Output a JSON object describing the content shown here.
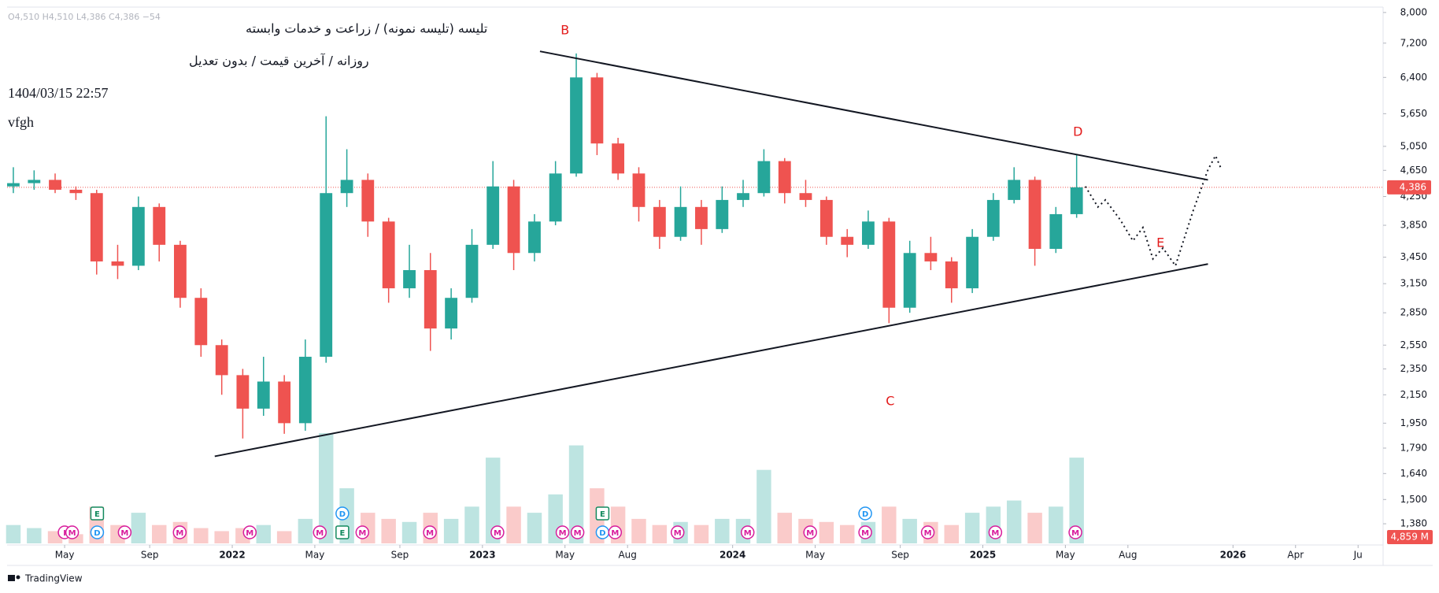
{
  "chart_data": {
    "type": "candlestick",
    "title": "تلیسه (تلیسه نمونه) / زراعت و خدمات وابسته",
    "subtitle": "روزانه / آخرین قیمت / بدون تعدیل",
    "date_text": "1404/03/15 22:57",
    "note": "vfgh",
    "ohlc_header": "O4,510 H4,510 L4,386 C4,386 −54",
    "brand": "TradingView",
    "log_scale": true,
    "ylim": [
      1290,
      8150
    ],
    "yticks": [
      {
        "value": 8000,
        "label": "8,000"
      },
      {
        "value": 7200,
        "label": "7,200"
      },
      {
        "value": 6400,
        "label": "6,400"
      },
      {
        "value": 5650,
        "label": "5,650"
      },
      {
        "value": 5050,
        "label": "5,050"
      },
      {
        "value": 4650,
        "label": "4,650"
      },
      {
        "value": 4250,
        "label": "4,250"
      },
      {
        "value": 3850,
        "label": "3,850"
      },
      {
        "value": 3450,
        "label": "3,450"
      },
      {
        "value": 3150,
        "label": "3,150"
      },
      {
        "value": 2850,
        "label": "2,850"
      },
      {
        "value": 2550,
        "label": "2,550"
      },
      {
        "value": 2350,
        "label": "2,350"
      },
      {
        "value": 2150,
        "label": "2,150"
      },
      {
        "value": 1950,
        "label": "1,950"
      },
      {
        "value": 1790,
        "label": "1,790"
      },
      {
        "value": 1640,
        "label": "1,640"
      },
      {
        "value": 1500,
        "label": "1,500"
      },
      {
        "value": 1380,
        "label": "1,380"
      }
    ],
    "xlim": [
      2021.1,
      2026.6
    ],
    "xticks": [
      {
        "value": 2021.33,
        "label": "May"
      },
      {
        "value": 2021.67,
        "label": "Sep"
      },
      {
        "value": 2022,
        "label": "2022",
        "bold": true
      },
      {
        "value": 2022.33,
        "label": "May"
      },
      {
        "value": 2022.67,
        "label": "Sep"
      },
      {
        "value": 2023,
        "label": "2023",
        "bold": true
      },
      {
        "value": 2023.33,
        "label": "May"
      },
      {
        "value": 2023.58,
        "label": "Aug"
      },
      {
        "value": 2024,
        "label": "2024",
        "bold": true
      },
      {
        "value": 2024.33,
        "label": "May"
      },
      {
        "value": 2024.67,
        "label": "Sep"
      },
      {
        "value": 2025,
        "label": "2025",
        "bold": true
      },
      {
        "value": 2025.33,
        "label": "May"
      },
      {
        "value": 2025.58,
        "label": "Aug"
      },
      {
        "value": 2026,
        "label": "2026",
        "bold": true
      },
      {
        "value": 2026.25,
        "label": "Apr"
      },
      {
        "value": 2026.5,
        "label": "Ju"
      }
    ],
    "up_color": "#26a69a",
    "down_color": "#ef5350",
    "x": [
      2021.125,
      2021.208,
      2021.292,
      2021.375,
      2021.458,
      2021.542,
      2021.625,
      2021.708,
      2021.792,
      2021.875,
      2021.958,
      2022.042,
      2022.125,
      2022.208,
      2022.292,
      2022.375,
      2022.458,
      2022.542,
      2022.625,
      2022.708,
      2022.792,
      2022.875,
      2022.958,
      2023.042,
      2023.125,
      2023.208,
      2023.292,
      2023.375,
      2023.458,
      2023.542,
      2023.625,
      2023.708,
      2023.792,
      2023.875,
      2023.958,
      2024.042,
      2024.125,
      2024.208,
      2024.292,
      2024.375,
      2024.458,
      2024.542,
      2024.625,
      2024.708,
      2024.792,
      2024.875,
      2024.958,
      2025.042,
      2025.125,
      2025.208,
      2025.292,
      2025.375
    ],
    "open": [
      4400,
      4450,
      4500,
      4350,
      4300,
      3400,
      3350,
      4100,
      3600,
      3000,
      2550,
      2300,
      2050,
      2250,
      1950,
      2450,
      4300,
      4500,
      3900,
      3100,
      3300,
      2700,
      3000,
      3600,
      4400,
      3500,
      3900,
      4600,
      6400,
      5100,
      4600,
      4100,
      3700,
      4100,
      3800,
      4200,
      4300,
      4800,
      4300,
      4200,
      3700,
      3600,
      3900,
      2900,
      3500,
      3400,
      3100,
      3700,
      4200,
      4500,
      3550,
      4000
    ],
    "high": [
      4700,
      4650,
      4600,
      4400,
      4350,
      3600,
      4250,
      4150,
      3650,
      3100,
      2600,
      2350,
      2450,
      2300,
      2600,
      5600,
      5000,
      4600,
      3950,
      3600,
      3500,
      3100,
      3800,
      4800,
      4500,
      4000,
      4800,
      6950,
      6500,
      5200,
      4700,
      4200,
      4400,
      4200,
      4400,
      4500,
      5000,
      4850,
      4500,
      4250,
      3800,
      4050,
      3950,
      3650,
      3700,
      3450,
      3800,
      4300,
      4700,
      4550,
      4100,
      4900
    ],
    "low": [
      4300,
      4350,
      4300,
      4200,
      3250,
      3200,
      3300,
      3400,
      2900,
      2450,
      2150,
      1850,
      2000,
      1880,
      1900,
      2400,
      4100,
      3700,
      2950,
      3000,
      2500,
      2600,
      2950,
      3550,
      3300,
      3400,
      3850,
      4550,
      4900,
      4500,
      3900,
      3550,
      3650,
      3600,
      3750,
      4100,
      4250,
      4150,
      4100,
      3600,
      3450,
      3550,
      2750,
      2850,
      3300,
      2950,
      3050,
      3650,
      4150,
      3350,
      3500,
      3950
    ],
    "close": [
      4450,
      4500,
      4350,
      4300,
      3400,
      3350,
      4100,
      3600,
      3000,
      2550,
      2300,
      2050,
      2250,
      1950,
      2450,
      4300,
      4500,
      3900,
      3100,
      3300,
      2700,
      3000,
      3600,
      4400,
      3500,
      3900,
      4600,
      6400,
      5100,
      4600,
      4100,
      3700,
      4100,
      3800,
      4200,
      4300,
      4800,
      4300,
      4200,
      3700,
      3600,
      3900,
      2900,
      3500,
      3400,
      3100,
      3700,
      4200,
      4500,
      3550,
      4000,
      4386
    ],
    "volume": [
      3000,
      2500,
      2000,
      1500,
      6000,
      3000,
      5000,
      3000,
      3500,
      2500,
      2000,
      2500,
      3000,
      2000,
      4000,
      18000,
      9000,
      5000,
      4000,
      3500,
      5000,
      4000,
      6000,
      14000,
      6000,
      5000,
      8000,
      16000,
      9000,
      6000,
      4000,
      3000,
      3500,
      3000,
      4000,
      4000,
      12000,
      5000,
      4000,
      3500,
      3000,
      3500,
      6000,
      4000,
      3500,
      3000,
      5000,
      6000,
      7000,
      5000,
      6000,
      14000
    ],
    "volume_label": "4,859 M",
    "current_price": {
      "value": 4386,
      "label": "4,386"
    },
    "trendlines": [
      {
        "points": [
          {
            "x": 2023.23,
            "y": 7000
          },
          {
            "x": 2025.9,
            "y": 4500
          }
        ]
      },
      {
        "points": [
          {
            "x": 2021.93,
            "y": 1740
          },
          {
            "x": 2025.9,
            "y": 3370
          }
        ]
      }
    ],
    "projection": [
      {
        "x": 2025.41,
        "y": 4400
      },
      {
        "x": 2025.46,
        "y": 4100
      },
      {
        "x": 2025.49,
        "y": 4200
      },
      {
        "x": 2025.55,
        "y": 3920
      },
      {
        "x": 2025.6,
        "y": 3650
      },
      {
        "x": 2025.64,
        "y": 3820
      },
      {
        "x": 2025.68,
        "y": 3430
      },
      {
        "x": 2025.72,
        "y": 3560
      },
      {
        "x": 2025.77,
        "y": 3350
      },
      {
        "x": 2025.84,
        "y": 4040
      },
      {
        "x": 2025.9,
        "y": 4660
      },
      {
        "x": 2025.93,
        "y": 4890
      },
      {
        "x": 2025.95,
        "y": 4700
      }
    ],
    "wave_labels": [
      {
        "label": "B",
        "x": 2023.33,
        "y": 7510
      },
      {
        "label": "C",
        "x": 2024.63,
        "y": 2100
      },
      {
        "label": "D",
        "x": 2025.38,
        "y": 5300
      },
      {
        "label": "E",
        "x": 2025.71,
        "y": 3620
      }
    ],
    "event_colors": {
      "M": "#d81b9c",
      "D": "#2196f3",
      "E": "#138a5e",
      "I": "#d81b9c"
    },
    "events": [
      {
        "x": 2021.33,
        "label": "I"
      },
      {
        "x": 2021.36,
        "label": "M"
      },
      {
        "x": 2021.46,
        "label": "D"
      },
      {
        "x": 2021.57,
        "label": "M"
      },
      {
        "x": 2021.79,
        "label": "M"
      },
      {
        "x": 2022.07,
        "label": "M"
      },
      {
        "x": 2022.35,
        "label": "M"
      },
      {
        "x": 2022.44,
        "label": "E"
      },
      {
        "x": 2022.52,
        "label": "M"
      },
      {
        "x": 2022.79,
        "label": "M"
      },
      {
        "x": 2023.06,
        "label": "M"
      },
      {
        "x": 2023.32,
        "label": "M"
      },
      {
        "x": 2023.38,
        "label": "M"
      },
      {
        "x": 2023.48,
        "label": "D"
      },
      {
        "x": 2023.53,
        "label": "M"
      },
      {
        "x": 2023.78,
        "label": "M"
      },
      {
        "x": 2024.06,
        "label": "M"
      },
      {
        "x": 2024.31,
        "label": "M"
      },
      {
        "x": 2024.53,
        "label": "M"
      },
      {
        "x": 2024.78,
        "label": "M"
      },
      {
        "x": 2025.05,
        "label": "M"
      },
      {
        "x": 2025.37,
        "label": "M"
      },
      {
        "x": 2021.46,
        "label": "E"
      },
      {
        "x": 2022.44,
        "label": "D"
      },
      {
        "x": 2023.48,
        "label": "E"
      },
      {
        "x": 2024.53,
        "label": "D"
      }
    ]
  }
}
